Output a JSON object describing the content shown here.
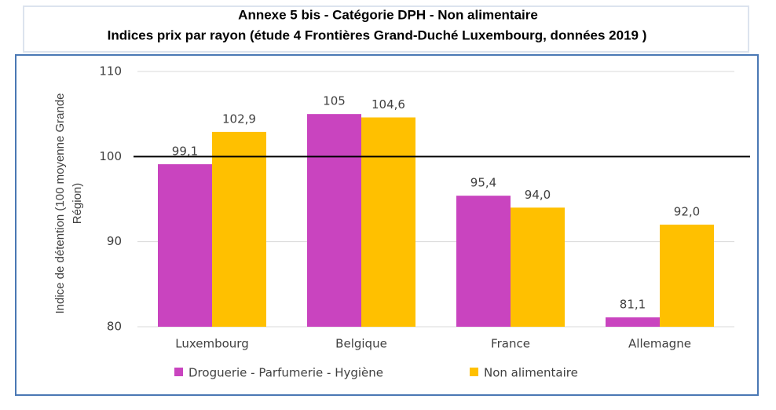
{
  "chart_data": {
    "type": "bar",
    "title": "Annexe 5  bis - Catégorie DPH - Non alimentaire",
    "subtitle": "Indices prix par rayon (étude 4 Frontières Grand-Duché Luxembourg, données 2019 )",
    "y_label": "Indice de détention (100 moyenne Grande Région)",
    "categories": [
      "Luxembourg",
      "Belgique",
      "France",
      "Allemagne"
    ],
    "series": [
      {
        "name": "Droguerie - Parfumerie - Hygiène",
        "color": "#c944bf",
        "values": [
          99.1,
          105,
          95.4,
          81.1
        ],
        "value_labels": [
          "99,1",
          "105",
          "95,4",
          "81,1"
        ]
      },
      {
        "name": "Non alimentaire",
        "color": "#ffc000",
        "values": [
          102.9,
          104.6,
          94.0,
          92.0
        ],
        "value_labels": [
          "102,9",
          "104,6",
          "94,0",
          "92,0"
        ]
      }
    ],
    "ylim": [
      80,
      110
    ],
    "yticks": [
      80,
      90,
      100,
      110
    ],
    "grid": true,
    "reference_line": 100
  }
}
